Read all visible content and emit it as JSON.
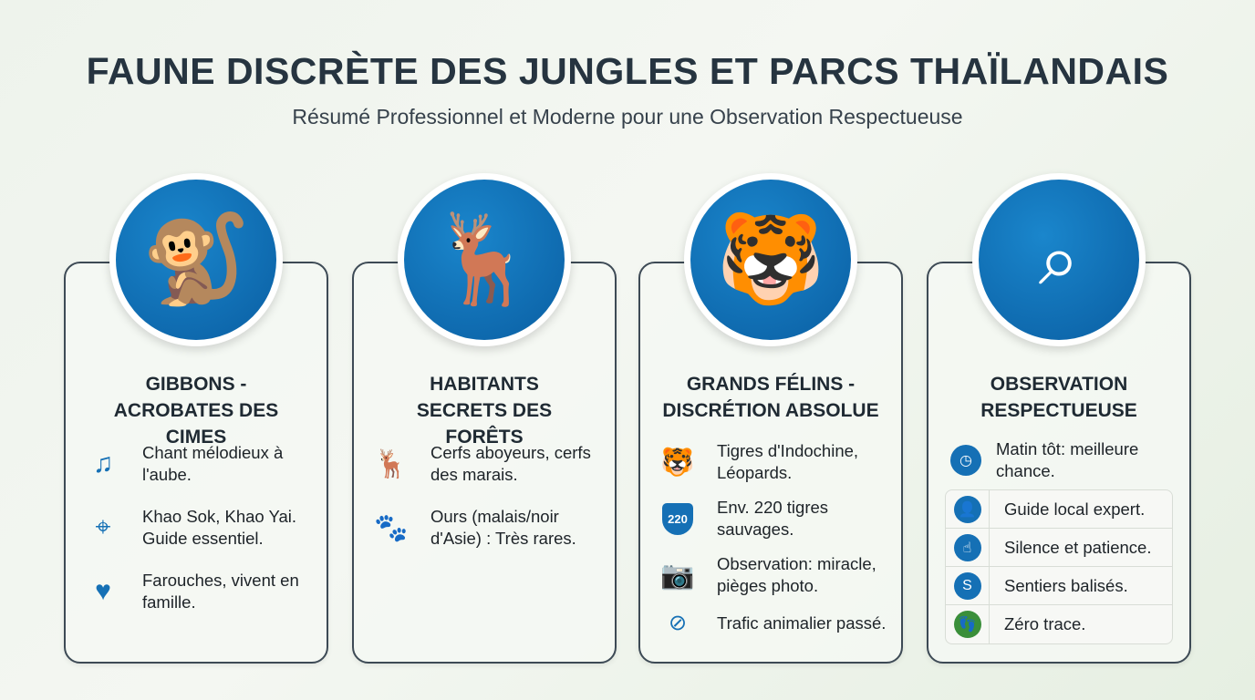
{
  "title": "FAUNE DISCRÈTE DES JUNGLES ET PARCS THAÏLANDAIS",
  "subtitle": "Résumé Professionnel et Moderne pour une Observation Respectueuse",
  "colors": {
    "accent": "#1570b5",
    "green": "#3a8f3a",
    "border": "#3d4a55"
  },
  "cards": [
    {
      "icon": "gibbon-icon",
      "title": "GIBBONS - ACROBATES DES CIMES",
      "items": [
        {
          "icon": "music-note-icon",
          "text": "Chant mélodieux à l'aube."
        },
        {
          "icon": "map-pin-icon",
          "text": "Khao Sok, Khao Yai. Guide essentiel."
        },
        {
          "icon": "monkey-family-icon",
          "text": "Farouches, vivent en famille."
        }
      ]
    },
    {
      "icon": "deer-icon",
      "title": "HABITANTS SECRETS DES FORÊTS",
      "items": [
        {
          "icon": "deer-icon",
          "text": "Cerfs aboyeurs, cerfs des marais."
        },
        {
          "icon": "paw-icon",
          "text": "Ours (malais/noir d'Asie) : Très rares."
        }
      ]
    },
    {
      "icon": "tiger-icon",
      "title": "GRANDS FÉLINS - DISCRÉTION ABSOLUE",
      "items": [
        {
          "icon": "tiger-icon",
          "text": "Tigres d'Indochine, Léopards."
        },
        {
          "icon": "shield-paw-icon",
          "text": "Env. 220 tigres sauvages.",
          "badge": "220"
        },
        {
          "icon": "camera-icon",
          "text": "Observation: miracle, pièges photo."
        },
        {
          "icon": "no-trafficking-icon",
          "text": "Trafic animalier passé."
        }
      ]
    },
    {
      "icon": "binoculars-icon",
      "title": "OBSERVATION RESPECTUEUSE",
      "first": {
        "icon": "clock-icon",
        "text": "Matin tôt: meilleure chance."
      },
      "rows": [
        {
          "icon": "guide-icon",
          "text": "Guide local expert."
        },
        {
          "icon": "silence-icon",
          "text": "Silence et patience."
        },
        {
          "icon": "trail-icon",
          "text": "Sentiers balisés."
        },
        {
          "icon": "footprint-icon",
          "text": "Zéro trace."
        }
      ]
    }
  ]
}
